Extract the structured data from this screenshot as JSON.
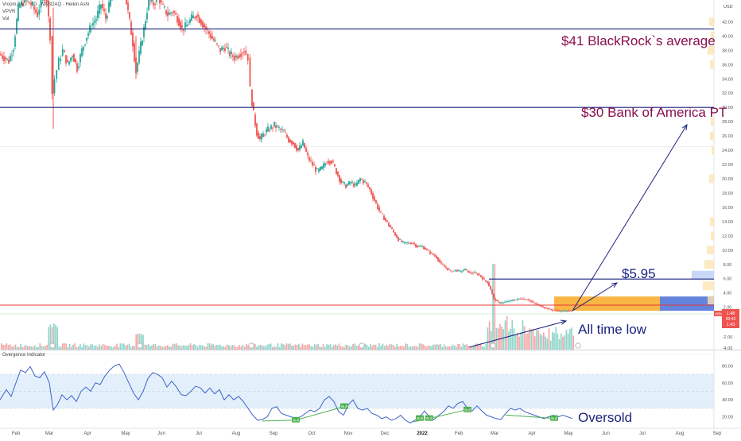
{
  "legend": {
    "symbol_line": "Vroom, Inc. · 1D · NASDAQ · Heikin Ashi",
    "vpvr": "VPVR",
    "vol": "Vol"
  },
  "oscillator": {
    "title": "Overgence Indicator",
    "y_ticks": [
      "80.00",
      "60.00",
      "40.00",
      "20.00"
    ],
    "bull_label": "Bull",
    "bull_count": 6,
    "annotation": "Oversold"
  },
  "annotations": {
    "blackrock": "$41 BlackRock`s average",
    "bofa": "$30 Bank of America PT",
    "target": "$5.95",
    "atl": "All time low"
  },
  "price_axis": {
    "currency": "USD",
    "ticks": [
      "42.00",
      "40.00",
      "38.00",
      "36.00",
      "34.00",
      "32.00",
      "30.00",
      "28.00",
      "26.00",
      "24.00",
      "22.00",
      "20.00",
      "18.00",
      "16.00",
      "14.00",
      "12.00",
      "10.00",
      "8.00",
      "6.00",
      "4.00",
      "2.00",
      "-2.00",
      "-4.00"
    ],
    "badge_top": "VRM",
    "badge_price": "1.48",
    "badge_time": "00:45",
    "badge_low": "1.43"
  },
  "x_axis": {
    "labels": [
      "Feb",
      "Mar",
      "Apr",
      "May",
      "Jun",
      "Jul",
      "Aug",
      "Sep",
      "Oct",
      "Nov",
      "Dec",
      "2022",
      "Feb",
      "Mar",
      "Apr",
      "May",
      "Jun",
      "Jul",
      "Aug",
      "Sep"
    ]
  },
  "colors": {
    "up": "#26a69a",
    "down": "#ef5350",
    "level_line": "#1a237e",
    "annotation_blue": "#1a237e",
    "annotation_purple": "#880e4f",
    "zone_orange": "#f9a825",
    "zone_blue": "#5c7cdb",
    "support_red": "#e53935",
    "oscillator_line": "#3f63c9",
    "bull_green": "#4caf50"
  },
  "chart_data": {
    "type": "candlestick",
    "title": "Vroom, Inc. · 1D · NASDAQ · Heikin Ashi",
    "price_range": [
      -4.5,
      44.5
    ],
    "horizontal_levels": [
      {
        "price": 41.0,
        "label": "$41 BlackRock`s average"
      },
      {
        "price": 30.0,
        "label": "$30 Bank of America PT"
      },
      {
        "price": 5.95,
        "label": "$5.95"
      },
      {
        "price": 2.3,
        "label": ""
      }
    ],
    "last_price": 1.48,
    "close_path": [
      {
        "x": 0,
        "price": 37.5
      },
      {
        "x": 6,
        "price": 37.0
      },
      {
        "x": 12,
        "price": 36.5
      },
      {
        "x": 18,
        "price": 38.5
      },
      {
        "x": 24,
        "price": 44.0
      },
      {
        "x": 32,
        "price": 45.0
      },
      {
        "x": 40,
        "price": 44.5
      },
      {
        "x": 48,
        "price": 43.0
      },
      {
        "x": 55,
        "price": 46.0
      },
      {
        "x": 60,
        "price": 45.0
      },
      {
        "x": 64,
        "price": 40.0
      },
      {
        "x": 67,
        "price": 32.0
      },
      {
        "x": 70,
        "price": 34.0
      },
      {
        "x": 75,
        "price": 36.5
      },
      {
        "x": 80,
        "price": 38.0
      },
      {
        "x": 86,
        "price": 36.0
      },
      {
        "x": 92,
        "price": 37.5
      },
      {
        "x": 98,
        "price": 35.5
      },
      {
        "x": 104,
        "price": 38.0
      },
      {
        "x": 110,
        "price": 40.0
      },
      {
        "x": 116,
        "price": 41.5
      },
      {
        "x": 122,
        "price": 42.5
      },
      {
        "x": 128,
        "price": 44.5
      },
      {
        "x": 134,
        "price": 42.5
      },
      {
        "x": 140,
        "price": 45.0
      },
      {
        "x": 146,
        "price": 48.0
      },
      {
        "x": 152,
        "price": 48.5
      },
      {
        "x": 158,
        "price": 46.0
      },
      {
        "x": 164,
        "price": 42.0
      },
      {
        "x": 168,
        "price": 39.0
      },
      {
        "x": 172,
        "price": 35.0
      },
      {
        "x": 176,
        "price": 37.5
      },
      {
        "x": 182,
        "price": 41.0
      },
      {
        "x": 188,
        "price": 45.0
      },
      {
        "x": 194,
        "price": 44.5
      },
      {
        "x": 200,
        "price": 45.5
      },
      {
        "x": 206,
        "price": 44.0
      },
      {
        "x": 212,
        "price": 43.0
      },
      {
        "x": 218,
        "price": 43.5
      },
      {
        "x": 224,
        "price": 42.5
      },
      {
        "x": 230,
        "price": 41.0
      },
      {
        "x": 236,
        "price": 41.5
      },
      {
        "x": 242,
        "price": 42.5
      },
      {
        "x": 248,
        "price": 43.0
      },
      {
        "x": 254,
        "price": 42.0
      },
      {
        "x": 260,
        "price": 41.0
      },
      {
        "x": 266,
        "price": 40.0
      },
      {
        "x": 272,
        "price": 39.0
      },
      {
        "x": 278,
        "price": 38.0
      },
      {
        "x": 284,
        "price": 38.5
      },
      {
        "x": 290,
        "price": 37.5
      },
      {
        "x": 296,
        "price": 37.0
      },
      {
        "x": 302,
        "price": 37.5
      },
      {
        "x": 308,
        "price": 38.0
      },
      {
        "x": 313,
        "price": 37.0
      },
      {
        "x": 316,
        "price": 32.5
      },
      {
        "x": 320,
        "price": 29.0
      },
      {
        "x": 324,
        "price": 26.5
      },
      {
        "x": 328,
        "price": 25.5
      },
      {
        "x": 334,
        "price": 26.5
      },
      {
        "x": 340,
        "price": 27.0
      },
      {
        "x": 346,
        "price": 27.5
      },
      {
        "x": 352,
        "price": 27.0
      },
      {
        "x": 358,
        "price": 26.5
      },
      {
        "x": 364,
        "price": 25.5
      },
      {
        "x": 370,
        "price": 25.0
      },
      {
        "x": 376,
        "price": 24.0
      },
      {
        "x": 382,
        "price": 25.0
      },
      {
        "x": 388,
        "price": 23.0
      },
      {
        "x": 394,
        "price": 22.0
      },
      {
        "x": 400,
        "price": 21.0
      },
      {
        "x": 406,
        "price": 21.5
      },
      {
        "x": 412,
        "price": 22.5
      },
      {
        "x": 418,
        "price": 22.5
      },
      {
        "x": 424,
        "price": 21.0
      },
      {
        "x": 430,
        "price": 19.5
      },
      {
        "x": 436,
        "price": 19.0
      },
      {
        "x": 442,
        "price": 19.5
      },
      {
        "x": 448,
        "price": 19.0
      },
      {
        "x": 454,
        "price": 20.0
      },
      {
        "x": 460,
        "price": 19.5
      },
      {
        "x": 466,
        "price": 18.5
      },
      {
        "x": 472,
        "price": 17.0
      },
      {
        "x": 478,
        "price": 15.5
      },
      {
        "x": 484,
        "price": 14.5
      },
      {
        "x": 490,
        "price": 13.5
      },
      {
        "x": 496,
        "price": 12.5
      },
      {
        "x": 502,
        "price": 11.5
      },
      {
        "x": 508,
        "price": 11.0
      },
      {
        "x": 514,
        "price": 11.0
      },
      {
        "x": 520,
        "price": 11.0
      },
      {
        "x": 526,
        "price": 10.5
      },
      {
        "x": 532,
        "price": 10.5
      },
      {
        "x": 538,
        "price": 10.0
      },
      {
        "x": 544,
        "price": 9.5
      },
      {
        "x": 550,
        "price": 9.0
      },
      {
        "x": 556,
        "price": 8.0
      },
      {
        "x": 562,
        "price": 7.5
      },
      {
        "x": 568,
        "price": 7.0
      },
      {
        "x": 574,
        "price": 7.2
      },
      {
        "x": 580,
        "price": 7.0
      },
      {
        "x": 586,
        "price": 7.3
      },
      {
        "x": 592,
        "price": 6.8
      },
      {
        "x": 598,
        "price": 6.8
      },
      {
        "x": 604,
        "price": 6.5
      },
      {
        "x": 610,
        "price": 5.8
      },
      {
        "x": 614,
        "price": 5.5
      },
      {
        "x": 618,
        "price": 4.5
      },
      {
        "x": 622,
        "price": 3.2
      },
      {
        "x": 626,
        "price": 2.8
      },
      {
        "x": 630,
        "price": 2.6
      },
      {
        "x": 636,
        "price": 2.7
      },
      {
        "x": 642,
        "price": 2.9
      },
      {
        "x": 648,
        "price": 3.0
      },
      {
        "x": 654,
        "price": 3.2
      },
      {
        "x": 660,
        "price": 3.1
      },
      {
        "x": 666,
        "price": 3.0
      },
      {
        "x": 672,
        "price": 2.6
      },
      {
        "x": 678,
        "price": 2.3
      },
      {
        "x": 684,
        "price": 2.0
      },
      {
        "x": 690,
        "price": 1.8
      },
      {
        "x": 696,
        "price": 1.6
      },
      {
        "x": 702,
        "price": 1.5
      },
      {
        "x": 708,
        "price": 1.45
      },
      {
        "x": 714,
        "price": 1.5
      },
      {
        "x": 720,
        "price": 1.48
      }
    ],
    "oscillator_path": [
      {
        "x": 0,
        "v": 40
      },
      {
        "x": 8,
        "v": 52
      },
      {
        "x": 14,
        "v": 44
      },
      {
        "x": 20,
        "v": 60
      },
      {
        "x": 26,
        "v": 75
      },
      {
        "x": 32,
        "v": 72
      },
      {
        "x": 38,
        "v": 79
      },
      {
        "x": 44,
        "v": 68
      },
      {
        "x": 50,
        "v": 66
      },
      {
        "x": 56,
        "v": 73
      },
      {
        "x": 62,
        "v": 60
      },
      {
        "x": 67,
        "v": 28
      },
      {
        "x": 72,
        "v": 34
      },
      {
        "x": 78,
        "v": 46
      },
      {
        "x": 84,
        "v": 40
      },
      {
        "x": 90,
        "v": 45
      },
      {
        "x": 96,
        "v": 38
      },
      {
        "x": 102,
        "v": 50
      },
      {
        "x": 108,
        "v": 55
      },
      {
        "x": 114,
        "v": 50
      },
      {
        "x": 120,
        "v": 60
      },
      {
        "x": 126,
        "v": 58
      },
      {
        "x": 132,
        "v": 68
      },
      {
        "x": 138,
        "v": 75
      },
      {
        "x": 144,
        "v": 80
      },
      {
        "x": 150,
        "v": 82
      },
      {
        "x": 156,
        "v": 72
      },
      {
        "x": 162,
        "v": 60
      },
      {
        "x": 168,
        "v": 48
      },
      {
        "x": 174,
        "v": 40
      },
      {
        "x": 180,
        "v": 50
      },
      {
        "x": 186,
        "v": 65
      },
      {
        "x": 192,
        "v": 72
      },
      {
        "x": 198,
        "v": 70
      },
      {
        "x": 204,
        "v": 66
      },
      {
        "x": 210,
        "v": 55
      },
      {
        "x": 216,
        "v": 62
      },
      {
        "x": 222,
        "v": 55
      },
      {
        "x": 228,
        "v": 46
      },
      {
        "x": 234,
        "v": 45
      },
      {
        "x": 240,
        "v": 50
      },
      {
        "x": 246,
        "v": 56
      },
      {
        "x": 252,
        "v": 54
      },
      {
        "x": 258,
        "v": 48
      },
      {
        "x": 264,
        "v": 54
      },
      {
        "x": 270,
        "v": 47
      },
      {
        "x": 276,
        "v": 52
      },
      {
        "x": 282,
        "v": 40
      },
      {
        "x": 288,
        "v": 46
      },
      {
        "x": 294,
        "v": 40
      },
      {
        "x": 300,
        "v": 44
      },
      {
        "x": 306,
        "v": 38
      },
      {
        "x": 312,
        "v": 30
      },
      {
        "x": 318,
        "v": 22
      },
      {
        "x": 324,
        "v": 16
      },
      {
        "x": 330,
        "v": 17
      },
      {
        "x": 336,
        "v": 20
      },
      {
        "x": 342,
        "v": 30
      },
      {
        "x": 348,
        "v": 32
      },
      {
        "x": 354,
        "v": 24
      },
      {
        "x": 360,
        "v": 22
      },
      {
        "x": 366,
        "v": 20
      },
      {
        "x": 372,
        "v": 18
      },
      {
        "x": 378,
        "v": 20
      },
      {
        "x": 384,
        "v": 24
      },
      {
        "x": 390,
        "v": 28
      },
      {
        "x": 396,
        "v": 26
      },
      {
        "x": 402,
        "v": 30
      },
      {
        "x": 408,
        "v": 40
      },
      {
        "x": 414,
        "v": 44
      },
      {
        "x": 420,
        "v": 38
      },
      {
        "x": 426,
        "v": 26
      },
      {
        "x": 432,
        "v": 22
      },
      {
        "x": 438,
        "v": 34
      },
      {
        "x": 444,
        "v": 40
      },
      {
        "x": 450,
        "v": 30
      },
      {
        "x": 456,
        "v": 28
      },
      {
        "x": 462,
        "v": 30
      },
      {
        "x": 468,
        "v": 24
      },
      {
        "x": 474,
        "v": 22
      },
      {
        "x": 480,
        "v": 18
      },
      {
        "x": 486,
        "v": 20
      },
      {
        "x": 492,
        "v": 16
      },
      {
        "x": 498,
        "v": 18
      },
      {
        "x": 504,
        "v": 22
      },
      {
        "x": 510,
        "v": 16
      },
      {
        "x": 516,
        "v": 13
      },
      {
        "x": 522,
        "v": 16
      },
      {
        "x": 528,
        "v": 20
      },
      {
        "x": 534,
        "v": 27
      },
      {
        "x": 540,
        "v": 20
      },
      {
        "x": 546,
        "v": 17
      },
      {
        "x": 552,
        "v": 22
      },
      {
        "x": 558,
        "v": 26
      },
      {
        "x": 564,
        "v": 33
      },
      {
        "x": 570,
        "v": 30
      },
      {
        "x": 576,
        "v": 36
      },
      {
        "x": 582,
        "v": 38
      },
      {
        "x": 588,
        "v": 30
      },
      {
        "x": 594,
        "v": 27
      },
      {
        "x": 600,
        "v": 33
      },
      {
        "x": 606,
        "v": 27
      },
      {
        "x": 612,
        "v": 22
      },
      {
        "x": 618,
        "v": 20
      },
      {
        "x": 624,
        "v": 18
      },
      {
        "x": 630,
        "v": 17
      },
      {
        "x": 636,
        "v": 24
      },
      {
        "x": 642,
        "v": 30
      },
      {
        "x": 648,
        "v": 28
      },
      {
        "x": 654,
        "v": 30
      },
      {
        "x": 660,
        "v": 26
      },
      {
        "x": 666,
        "v": 24
      },
      {
        "x": 672,
        "v": 22
      },
      {
        "x": 678,
        "v": 20
      },
      {
        "x": 684,
        "v": 18
      },
      {
        "x": 690,
        "v": 20
      },
      {
        "x": 696,
        "v": 22
      },
      {
        "x": 702,
        "v": 20
      },
      {
        "x": 708,
        "v": 22
      },
      {
        "x": 714,
        "v": 20
      },
      {
        "x": 720,
        "v": 18
      }
    ]
  }
}
